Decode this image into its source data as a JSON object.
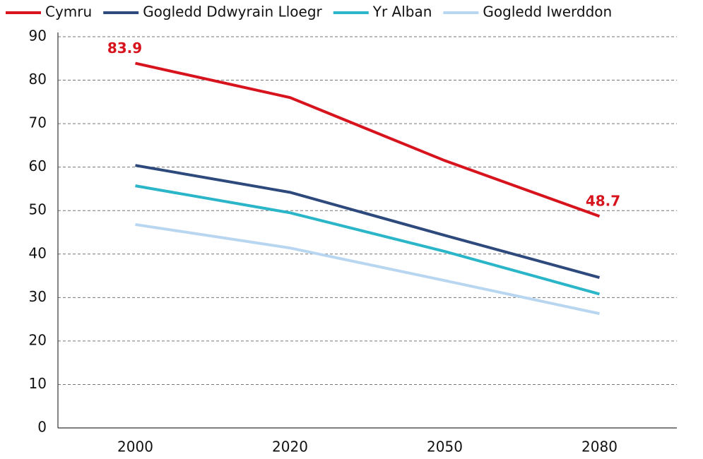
{
  "chart_data": {
    "type": "line",
    "categories": [
      "2000",
      "2020",
      "2050",
      "2080"
    ],
    "series": [
      {
        "name": "Cymru",
        "color": "#d7141e",
        "values": [
          83.9,
          76.0,
          61.5,
          48.7
        ],
        "value_labels": [
          "83.9",
          null,
          null,
          "48.7"
        ]
      },
      {
        "name": "Gogledd Ddwyrain Lloegr",
        "color": "#2e4a7d",
        "values": [
          60.4,
          54.2,
          44.3,
          34.6
        ]
      },
      {
        "name": "Yr Alban",
        "color": "#2bb5c8",
        "values": [
          55.7,
          49.5,
          40.6,
          30.8
        ]
      },
      {
        "name": "Gogledd Iwerddon",
        "color": "#b9d6f0",
        "values": [
          46.8,
          41.4,
          33.9,
          26.3
        ]
      }
    ],
    "ylim": [
      0,
      90
    ],
    "yticks": [
      0,
      10,
      20,
      30,
      40,
      50,
      60,
      70,
      80,
      90
    ],
    "grid": true
  }
}
